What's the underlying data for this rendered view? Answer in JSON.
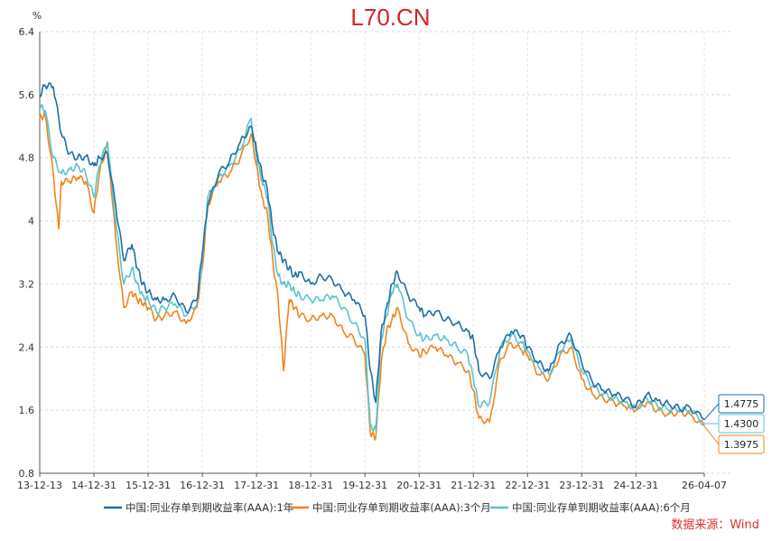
{
  "chart_data": {
    "type": "line",
    "title": "L70.CN",
    "ylabel": "%",
    "ylim": [
      0.8,
      6.4
    ],
    "yticks": [
      "0.8",
      "1.6",
      "2.4",
      "3.2",
      "4",
      "4.8",
      "5.6",
      "6.4"
    ],
    "xticks": [
      "13-12-13",
      "14-12-31",
      "15-12-31",
      "16-12-31",
      "17-12-31",
      "18-12-31",
      "19-12-31",
      "20-12-31",
      "21-12-31",
      "22-12-31",
      "23-12-31",
      "24-12-31",
      "26-04-07"
    ],
    "grid": true,
    "legend_position": "bottom",
    "colors": [
      "#1f6fa3",
      "#f0841f",
      "#5bc3cf"
    ],
    "series": [
      {
        "name": "中国:同业存单到期收益率(AAA):1年",
        "end_label": "1.4775",
        "x": [
          0,
          0.1,
          0.25,
          0.4,
          0.55,
          0.7,
          0.85,
          1.0,
          1.1,
          1.25,
          1.4,
          1.55,
          1.7,
          1.8,
          1.9,
          2.0,
          2.15,
          2.3,
          2.5,
          2.7,
          2.9,
          3.0,
          3.1,
          3.3,
          3.5,
          3.7,
          3.9,
          4.0,
          4.1,
          4.2,
          4.3,
          4.4,
          4.5,
          4.6,
          4.7,
          4.8,
          5.0,
          5.2,
          5.4,
          5.6,
          5.8,
          6.0,
          6.1,
          6.2,
          6.3,
          6.4,
          6.5,
          6.6,
          6.8,
          7.0,
          7.1,
          7.3,
          7.5,
          7.7,
          7.9,
          8.0,
          8.1,
          8.3,
          8.5,
          8.7,
          8.9,
          9.0,
          9.2,
          9.4,
          9.6,
          9.8,
          10.0,
          10.2,
          10.4,
          10.6,
          10.8,
          11.0,
          11.2,
          11.4,
          11.6,
          11.8,
          12.0,
          12.26
        ],
        "y": [
          5.6,
          5.72,
          5.7,
          5.1,
          4.85,
          4.8,
          4.82,
          4.7,
          4.8,
          4.85,
          4.2,
          3.5,
          3.7,
          3.4,
          3.2,
          3.1,
          3.0,
          3.0,
          3.05,
          2.85,
          3.0,
          3.6,
          4.2,
          4.6,
          4.75,
          5.0,
          5.2,
          4.9,
          4.6,
          4.4,
          3.9,
          3.6,
          3.5,
          3.4,
          3.3,
          3.35,
          3.2,
          3.3,
          3.25,
          3.1,
          3.0,
          2.8,
          2.1,
          1.7,
          2.6,
          2.9,
          3.2,
          3.35,
          3.05,
          2.9,
          2.8,
          2.85,
          2.75,
          2.7,
          2.6,
          2.5,
          2.1,
          2.0,
          2.4,
          2.6,
          2.55,
          2.4,
          2.2,
          2.1,
          2.45,
          2.55,
          2.2,
          1.95,
          1.85,
          1.8,
          1.75,
          1.65,
          1.8,
          1.72,
          1.68,
          1.62,
          1.63,
          1.4775
        ]
      },
      {
        "name": "中国:同业存单到期收益率(AAA):3个月",
        "end_label": "1.3975",
        "x": [
          0,
          0.1,
          0.25,
          0.35,
          0.4,
          0.55,
          0.7,
          0.85,
          1.0,
          1.1,
          1.25,
          1.4,
          1.55,
          1.7,
          1.8,
          1.9,
          2.0,
          2.15,
          2.3,
          2.5,
          2.7,
          2.9,
          3.0,
          3.1,
          3.3,
          3.5,
          3.7,
          3.9,
          4.0,
          4.1,
          4.2,
          4.3,
          4.4,
          4.5,
          4.6,
          4.7,
          4.8,
          5.0,
          5.2,
          5.4,
          5.6,
          5.8,
          6.0,
          6.1,
          6.2,
          6.3,
          6.4,
          6.5,
          6.6,
          6.8,
          7.0,
          7.1,
          7.3,
          7.5,
          7.7,
          7.9,
          8.0,
          8.1,
          8.3,
          8.5,
          8.7,
          8.9,
          9.0,
          9.2,
          9.4,
          9.6,
          9.8,
          10.0,
          10.2,
          10.4,
          10.6,
          10.8,
          11.0,
          11.2,
          11.4,
          11.6,
          11.8,
          12.0,
          12.26
        ],
        "y": [
          5.3,
          5.35,
          4.6,
          3.9,
          4.5,
          4.5,
          4.55,
          4.5,
          4.1,
          4.6,
          5.0,
          3.8,
          2.9,
          3.1,
          3.0,
          2.95,
          2.9,
          2.75,
          2.8,
          2.85,
          2.7,
          2.9,
          3.4,
          4.2,
          4.5,
          4.6,
          4.8,
          5.1,
          4.7,
          4.3,
          4.1,
          3.5,
          3.0,
          2.1,
          3.0,
          2.9,
          2.8,
          2.75,
          2.8,
          2.8,
          2.6,
          2.5,
          2.3,
          1.3,
          1.25,
          2.2,
          2.6,
          2.75,
          2.9,
          2.45,
          2.3,
          2.35,
          2.4,
          2.3,
          2.2,
          2.1,
          1.85,
          1.5,
          1.45,
          2.25,
          2.45,
          2.35,
          2.3,
          2.05,
          2.0,
          2.3,
          2.4,
          2.0,
          1.8,
          1.75,
          1.7,
          1.65,
          1.6,
          1.7,
          1.6,
          1.55,
          1.58,
          1.55,
          1.3975
        ]
      },
      {
        "name": "中国:同业存单到期收益率(AAA):6个月",
        "end_label": "1.4300",
        "x": [
          0,
          0.1,
          0.25,
          0.4,
          0.55,
          0.7,
          0.85,
          1.0,
          1.1,
          1.25,
          1.4,
          1.55,
          1.7,
          1.8,
          1.9,
          2.0,
          2.15,
          2.3,
          2.5,
          2.7,
          2.9,
          3.0,
          3.1,
          3.3,
          3.5,
          3.7,
          3.9,
          4.0,
          4.1,
          4.2,
          4.3,
          4.4,
          4.5,
          4.6,
          4.7,
          4.8,
          5.0,
          5.2,
          5.4,
          5.6,
          5.8,
          6.0,
          6.1,
          6.2,
          6.3,
          6.4,
          6.5,
          6.6,
          6.8,
          7.0,
          7.1,
          7.3,
          7.5,
          7.7,
          7.9,
          8.0,
          8.1,
          8.3,
          8.5,
          8.7,
          8.9,
          9.0,
          9.2,
          9.4,
          9.6,
          9.8,
          10.0,
          10.2,
          10.4,
          10.6,
          10.8,
          11.0,
          11.2,
          11.4,
          11.6,
          11.8,
          12.0,
          12.26
        ],
        "y": [
          5.45,
          5.4,
          4.8,
          4.6,
          4.65,
          4.7,
          4.6,
          4.3,
          4.7,
          5.0,
          4.0,
          3.2,
          3.4,
          3.2,
          3.05,
          3.0,
          2.85,
          2.9,
          2.95,
          2.8,
          2.95,
          3.5,
          4.3,
          4.55,
          4.7,
          4.9,
          5.3,
          4.8,
          4.5,
          4.3,
          3.7,
          3.3,
          3.2,
          3.2,
          3.1,
          3.05,
          3.0,
          3.0,
          3.05,
          2.9,
          2.7,
          2.5,
          1.4,
          1.35,
          2.5,
          2.8,
          3.1,
          3.2,
          2.75,
          2.55,
          2.5,
          2.55,
          2.5,
          2.4,
          2.3,
          2.0,
          1.65,
          1.7,
          2.4,
          2.55,
          2.45,
          2.35,
          2.15,
          2.05,
          2.35,
          2.5,
          2.1,
          1.9,
          1.8,
          1.75,
          1.7,
          1.62,
          1.75,
          1.65,
          1.6,
          1.6,
          1.6,
          1.43
        ]
      }
    ]
  },
  "source": "数据来源：Wind"
}
